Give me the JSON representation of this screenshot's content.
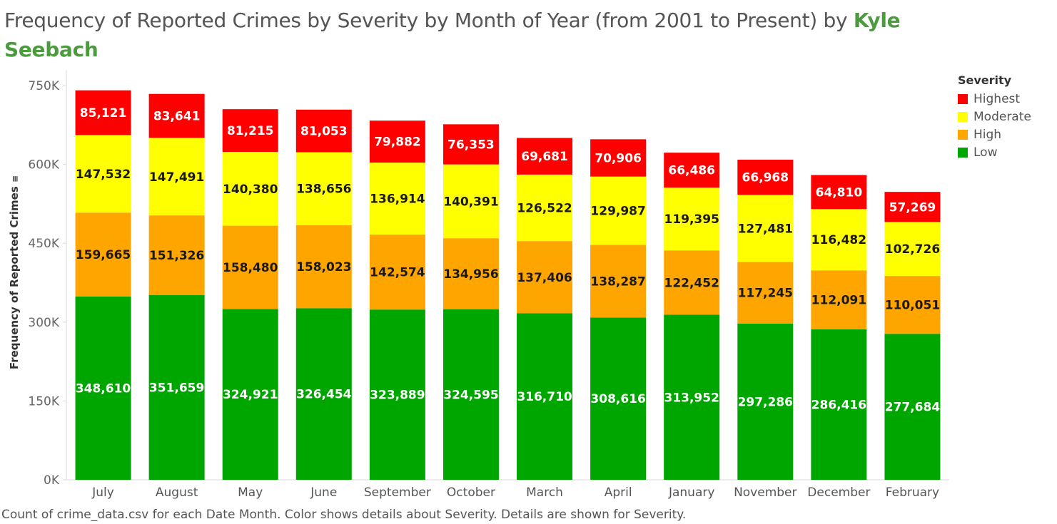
{
  "title": {
    "text": "Frequency of Reported Crimes by Severity by Month of Year (from 2001 to Present) by ",
    "author": "Kyle Seebach"
  },
  "caption": "Count of crime_data.csv for each Date Month.  Color shows details about Severity.  Details are shown for Severity.",
  "chart_data": {
    "type": "bar",
    "stacked": true,
    "title": "Frequency of Reported Crimes by Severity by Month of Year (from 2001 to Present) by Kyle Seebach",
    "ylabel": "Frequency of Reported Crimes",
    "xlabel": "",
    "ylim": [
      0,
      750000
    ],
    "yticks": [
      0,
      150000,
      300000,
      450000,
      600000,
      750000
    ],
    "ytick_labels": [
      "0K",
      "150K",
      "300K",
      "450K",
      "600K",
      "750K"
    ],
    "categories": [
      "July",
      "August",
      "May",
      "June",
      "September",
      "October",
      "March",
      "April",
      "January",
      "November",
      "December",
      "February"
    ],
    "series": [
      {
        "name": "Low",
        "color": "#00a600",
        "label_color": "#ffffff",
        "values": [
          348610,
          351659,
          324921,
          326454,
          323889,
          324595,
          316710,
          308616,
          313952,
          297286,
          286416,
          277684
        ],
        "labels": [
          "348,610",
          "351,659",
          "324,921",
          "326,454",
          "323,889",
          "324,595",
          "316,710",
          "308,616",
          "313,952",
          "297,286",
          "286,416",
          "277,684"
        ]
      },
      {
        "name": "High",
        "color": "#ffa500",
        "label_color": "#1a1a1a",
        "values": [
          159665,
          151326,
          158480,
          158023,
          142574,
          134956,
          137406,
          138287,
          122452,
          117245,
          112091,
          110051
        ],
        "labels": [
          "159,665",
          "151,326",
          "158,480",
          "158,023",
          "142,574",
          "134,956",
          "137,406",
          "138,287",
          "122,452",
          "117,245",
          "112,091",
          "110,051"
        ]
      },
      {
        "name": "Moderate",
        "color": "#ffff00",
        "label_color": "#1a1a1a",
        "values": [
          147532,
          147491,
          140380,
          138656,
          136914,
          140391,
          126522,
          129987,
          119395,
          127481,
          116482,
          102726
        ],
        "labels": [
          "147,532",
          "147,491",
          "140,380",
          "138,656",
          "136,914",
          "140,391",
          "126,522",
          "129,987",
          "119,395",
          "127,481",
          "116,482",
          "102,726"
        ]
      },
      {
        "name": "Highest",
        "color": "#ff0000",
        "label_color": "#ffffff",
        "values": [
          85121,
          83641,
          81215,
          81053,
          79882,
          76353,
          69681,
          70906,
          66486,
          66968,
          64810,
          57269
        ],
        "labels": [
          "85,121",
          "83,641",
          "81,215",
          "81,053",
          "79,882",
          "76,353",
          "69,681",
          "70,906",
          "66,486",
          "66,968",
          "64,810",
          "57,269"
        ]
      }
    ],
    "legend": {
      "title": "Severity",
      "position": "right",
      "items": [
        {
          "name": "Highest",
          "color": "#ff0000"
        },
        {
          "name": "Moderate",
          "color": "#ffff00"
        },
        {
          "name": "High",
          "color": "#ffa500"
        },
        {
          "name": "Low",
          "color": "#00a600"
        }
      ]
    },
    "grid": false
  }
}
